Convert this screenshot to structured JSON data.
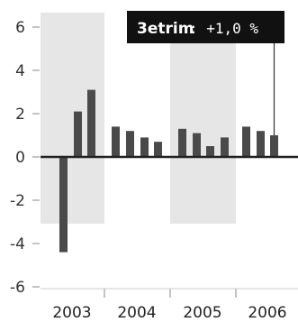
{
  "chart_data": {
    "type": "bar",
    "title": "",
    "xlabel": "",
    "ylabel": "",
    "ylim": [
      -6,
      6
    ],
    "yticks": [
      "6",
      "4",
      "2",
      "0",
      "-2",
      "-4",
      "-6"
    ],
    "years": [
      "2003",
      "2004",
      "2005",
      "2006"
    ],
    "bar_color": "#4a4a4a",
    "band_color": "#e6e6e6",
    "tooltip": {
      "label": "3etrim",
      "value": ": +1,0 %"
    },
    "bars": [
      {
        "year": "2003",
        "q": 1,
        "value": -4.4
      },
      {
        "year": "2003",
        "q": 2,
        "value": 2.1
      },
      {
        "year": "2003",
        "q": 3,
        "value": 3.1
      },
      {
        "year": "2004",
        "q": 1,
        "value": 1.4
      },
      {
        "year": "2004",
        "q": 2,
        "value": 1.2
      },
      {
        "year": "2004",
        "q": 3,
        "value": 0.9
      },
      {
        "year": "2004",
        "q": 4,
        "value": 0.7
      },
      {
        "year": "2005",
        "q": 1,
        "value": 1.3
      },
      {
        "year": "2005",
        "q": 2,
        "value": 1.1
      },
      {
        "year": "2005",
        "q": 3,
        "value": 0.5
      },
      {
        "year": "2005",
        "q": 4,
        "value": 0.9
      },
      {
        "year": "2006",
        "q": 1,
        "value": 1.4
      },
      {
        "year": "2006",
        "q": 2,
        "value": 1.2
      },
      {
        "year": "2006",
        "q": 3,
        "value": 1.0
      }
    ]
  }
}
